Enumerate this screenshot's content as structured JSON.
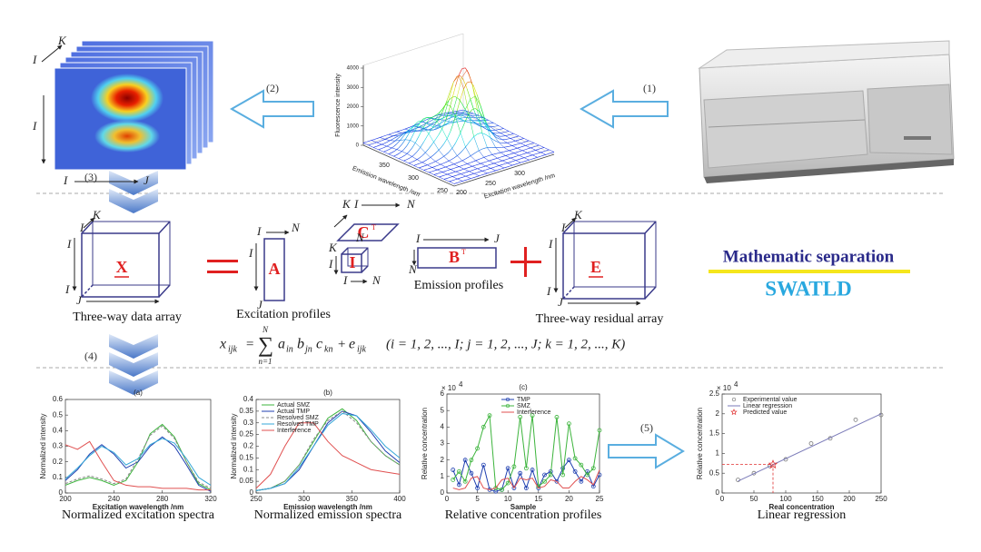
{
  "steps": [
    "(1)",
    "(2)",
    "(3)",
    "(4)",
    "(5)"
  ],
  "eem_cube": {
    "letters": [
      "K",
      "I",
      "I",
      "I",
      "J"
    ]
  },
  "surface_plot": {
    "z_label": "Fluorescence intensity",
    "x_label": "Emission wavelength /nm",
    "y_label": "Excitation wavelength /nm",
    "z_ticks": [
      0,
      1000,
      2000,
      3000,
      4000
    ],
    "x_ticks": [
      250,
      300,
      350
    ],
    "y_ticks": [
      200,
      250,
      300
    ]
  },
  "model": {
    "data_array": {
      "symbol": "X",
      "caption": "Three-way data array",
      "letters": [
        "K",
        "I",
        "I",
        "I",
        "J"
      ]
    },
    "excitation": {
      "symbol": "A",
      "caption": "Excitation profiles",
      "letters": [
        "I",
        "N",
        "I",
        "J"
      ]
    },
    "concentration": {
      "symbol": "C",
      "superscript": "T",
      "letters": [
        "K",
        "I",
        "N"
      ]
    },
    "core": {
      "symbol": "I",
      "letters": [
        "N",
        "K",
        "I",
        "I",
        "N"
      ]
    },
    "emission": {
      "symbol": "B",
      "superscript": "T",
      "caption": "Emission profiles",
      "letters": [
        "I",
        "J",
        "N"
      ]
    },
    "residual": {
      "symbol": "E",
      "caption": "Three-way residual array",
      "letters": [
        "K",
        "I",
        "I",
        "I",
        "J"
      ]
    },
    "equation": {
      "lhs": "x",
      "lhs_index": "ijk",
      "equals": "=",
      "sum": "∑",
      "sum_upper": "N",
      "sum_lower": "n=1",
      "factors": [
        {
          "symbol": "a",
          "index": "in"
        },
        {
          "symbol": "b",
          "index": "jn"
        },
        {
          "symbol": "c",
          "index": "kn"
        }
      ],
      "plus": "+",
      "error": {
        "symbol": "e",
        "index": "ijk"
      },
      "range": "(i = 1, 2, ..., I; j = 1, 2, ..., J; k = 1, 2, ..., K)"
    }
  },
  "method": {
    "title": "Mathematic separation",
    "name": "SWATLD"
  },
  "panels": [
    {
      "label": "(a)",
      "caption": "Normalized excitation spectra",
      "x_label": "Excitation wavelength /nm",
      "y_label": "Normalized intensity",
      "xlim": [
        200,
        320
      ],
      "ylim": [
        0,
        0.6
      ],
      "xticks": [
        200,
        240,
        280,
        320
      ],
      "yticks": [
        0,
        0.1,
        0.2,
        0.3,
        0.4,
        0.5,
        0.6
      ],
      "x": [
        200,
        210,
        220,
        230,
        240,
        250,
        260,
        270,
        280,
        290,
        300,
        310,
        320
      ],
      "series": [
        {
          "color": "#3cb43c",
          "values": [
            0.05,
            0.08,
            0.1,
            0.08,
            0.05,
            0.08,
            0.2,
            0.38,
            0.44,
            0.36,
            0.2,
            0.06,
            0.02
          ]
        },
        {
          "color": "#1f3fb0",
          "values": [
            0.08,
            0.15,
            0.25,
            0.31,
            0.25,
            0.16,
            0.2,
            0.3,
            0.36,
            0.3,
            0.18,
            0.05,
            0.01
          ]
        },
        {
          "color": "#888888",
          "dash": true,
          "values": [
            0.06,
            0.09,
            0.11,
            0.09,
            0.06,
            0.09,
            0.22,
            0.37,
            0.43,
            0.35,
            0.2,
            0.07,
            0.03
          ]
        },
        {
          "color": "#36a8d8",
          "values": [
            0.09,
            0.16,
            0.24,
            0.3,
            0.26,
            0.18,
            0.22,
            0.31,
            0.35,
            0.32,
            0.22,
            0.1,
            0.05
          ]
        },
        {
          "color": "#e05050",
          "values": [
            0.31,
            0.28,
            0.33,
            0.2,
            0.08,
            0.05,
            0.04,
            0.04,
            0.03,
            0.03,
            0.03,
            0.02,
            0.02
          ]
        }
      ]
    },
    {
      "label": "(b)",
      "caption": "Normalized emission spectra",
      "x_label": "Emission wavelength /nm",
      "y_label": "Normalized intensity",
      "xlim": [
        250,
        400
      ],
      "ylim": [
        0,
        0.4
      ],
      "xticks": [
        250,
        300,
        350,
        400
      ],
      "yticks": [
        0,
        0.05,
        0.1,
        0.15,
        0.2,
        0.25,
        0.3,
        0.35,
        0.4
      ],
      "legend": "upper left",
      "x": [
        250,
        265,
        280,
        295,
        310,
        325,
        340,
        355,
        370,
        385,
        400
      ],
      "series": [
        {
          "name": "Actual SMZ",
          "color": "#3cb43c",
          "values": [
            0.01,
            0.02,
            0.05,
            0.12,
            0.22,
            0.32,
            0.36,
            0.31,
            0.22,
            0.16,
            0.12
          ]
        },
        {
          "name": "Actual TMP",
          "color": "#1f3fb0",
          "values": [
            0.01,
            0.02,
            0.04,
            0.1,
            0.2,
            0.3,
            0.35,
            0.33,
            0.26,
            0.18,
            0.13
          ]
        },
        {
          "name": "Resolved SMZ",
          "color": "#888888",
          "dash": true,
          "values": [
            0.01,
            0.02,
            0.05,
            0.12,
            0.23,
            0.31,
            0.35,
            0.3,
            0.22,
            0.16,
            0.12
          ]
        },
        {
          "name": "Resolved TMP",
          "color": "#36a8d8",
          "values": [
            0.01,
            0.02,
            0.04,
            0.11,
            0.2,
            0.29,
            0.34,
            0.33,
            0.27,
            0.2,
            0.15
          ]
        },
        {
          "name": "Interference",
          "color": "#e05050",
          "values": [
            0.02,
            0.08,
            0.2,
            0.3,
            0.3,
            0.22,
            0.16,
            0.13,
            0.1,
            0.09,
            0.08
          ]
        }
      ]
    },
    {
      "label": "(c)",
      "caption": "Relative concentration profiles",
      "x_label": "Sample",
      "y_label": "Relative concentration",
      "y_scale_base": "× 10",
      "y_scale_exp": "4",
      "xlim": [
        0,
        25
      ],
      "ylim": [
        0,
        6
      ],
      "xticks": [
        0,
        5,
        10,
        15,
        20,
        25
      ],
      "yticks": [
        0,
        1,
        2,
        3,
        4,
        5,
        6
      ],
      "legend": "upper center",
      "x": [
        1,
        2,
        3,
        4,
        5,
        6,
        7,
        8,
        9,
        10,
        11,
        12,
        13,
        14,
        15,
        16,
        17,
        18,
        19,
        20,
        21,
        22,
        23,
        24,
        25
      ],
      "series": [
        {
          "name": "TMP",
          "color": "#1f3fb0",
          "marker": "circle",
          "values": [
            1.4,
            0.5,
            2.0,
            1.2,
            0.3,
            1.7,
            0.2,
            0.1,
            0.2,
            1.5,
            0.3,
            1.2,
            0.3,
            1.4,
            0.3,
            1.1,
            1.3,
            0.7,
            1.5,
            2.0,
            1.3,
            0.7,
            1.3,
            0.4,
            1.1
          ]
        },
        {
          "name": "SMZ",
          "color": "#3cb43c",
          "marker": "circle",
          "values": [
            0.8,
            1.3,
            0.7,
            2.0,
            2.7,
            4.0,
            4.7,
            0.3,
            0.2,
            0.6,
            1.6,
            4.6,
            1.5,
            4.7,
            0.4,
            0.7,
            1.1,
            4.6,
            1.1,
            4.2,
            2.1,
            1.7,
            1.1,
            1.5,
            3.8
          ]
        },
        {
          "name": "Interference",
          "color": "#e05050",
          "values": [
            0.3,
            0.2,
            0.3,
            0.9,
            1.0,
            0.3,
            0.2,
            0.3,
            0.8,
            0.9,
            0.3,
            0.9,
            0.8,
            0.9,
            0.3,
            0.4,
            0.8,
            0.7,
            0.3,
            0.3,
            0.7,
            1.0,
            0.8,
            0.5,
            1.4
          ]
        }
      ]
    },
    {
      "label": null,
      "caption": "Linear regression",
      "x_label": "Real concentration",
      "y_label": "Relative concentration",
      "y_scale_base": "× 10",
      "y_scale_exp": "4",
      "xlim": [
        0,
        250
      ],
      "ylim": [
        0,
        2.5
      ],
      "xticks": [
        0,
        50,
        100,
        150,
        200,
        250
      ],
      "yticks": [
        0,
        0.5,
        1,
        1.5,
        2,
        2.5
      ],
      "legend": "upper left",
      "series": [
        {
          "name": "Experimental value",
          "color": "#777777",
          "marker": "circle",
          "line": false,
          "x": [
            25,
            50,
            75,
            100,
            140,
            170,
            210,
            250
          ],
          "values": [
            0.33,
            0.5,
            0.68,
            0.85,
            1.25,
            1.38,
            1.85,
            1.97
          ]
        },
        {
          "name": "Linear regression",
          "color": "#7a7ab8",
          "x": [
            25,
            250
          ],
          "values": [
            0.3,
            2.0
          ]
        },
        {
          "name": "Predicted value",
          "color": "#e03030",
          "marker": "star",
          "line": false,
          "guide": true,
          "x": [
            80
          ],
          "values": [
            0.72
          ]
        }
      ]
    }
  ]
}
